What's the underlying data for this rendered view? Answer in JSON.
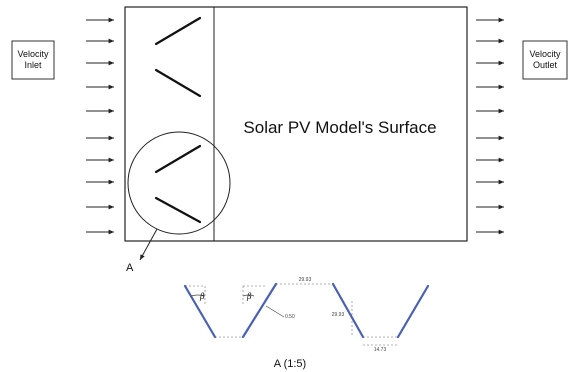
{
  "inlet": {
    "line1": "Velocity",
    "line2": "Inlet"
  },
  "outlet": {
    "line1": "Velocity",
    "line2": "Outlet"
  },
  "surface_label": "Solar PV Model's Surface",
  "callout_label": "A",
  "detail": {
    "angle_1": "β",
    "angle_2": "β",
    "thickness": "0.50",
    "top_width": "29.93",
    "height": "29.93",
    "bottom_width": "14.73",
    "caption": "A (1:5)"
  },
  "colors": {
    "panel_blue": "#4a5fb5",
    "line": "#1a1a1a",
    "dash": "#999999"
  }
}
